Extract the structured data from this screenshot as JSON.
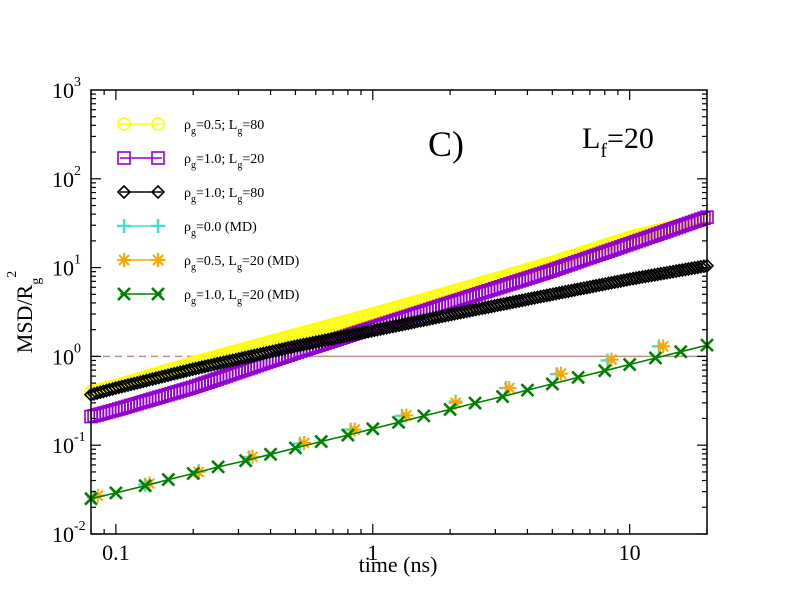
{
  "chart_data": {
    "type": "scatter",
    "title": "",
    "panel_label": "C)",
    "annotation": {
      "main": "L",
      "sub": "f",
      "rest": "=20"
    },
    "xlabel": "time (ns)",
    "ylabel": {
      "main": "MSD/R",
      "sub": "g",
      "sup": "2"
    },
    "x_scale": "log",
    "y_scale": "log",
    "xlim": [
      0.08,
      20
    ],
    "ylim": [
      0.01,
      1000
    ],
    "x_ticks": [
      {
        "value": 0.1,
        "label": "0.1"
      },
      {
        "value": 1,
        "label": "1"
      },
      {
        "value": 10,
        "label": "10"
      }
    ],
    "y_ticks": [
      {
        "value": 0.01,
        "base": "10",
        "exp": "-2"
      },
      {
        "value": 0.1,
        "base": "10",
        "exp": "-1"
      },
      {
        "value": 1,
        "base": "10",
        "exp": "0"
      },
      {
        "value": 10,
        "base": "10",
        "exp": "1"
      },
      {
        "value": 100,
        "base": "10",
        "exp": "2"
      },
      {
        "value": 1000,
        "base": "10",
        "exp": "3"
      }
    ],
    "grid": false,
    "legend_position": "top-left",
    "reference_line": {
      "y": 1.0,
      "color": "#bc8f8f",
      "style": "dashed-then-solid"
    },
    "series": [
      {
        "legend": {
          "pre": "ρ",
          "sub1": "g",
          "mid": "=0.5; L",
          "sub2": "g",
          "post": "=80"
        },
        "marker": "circle",
        "color": "#ffff00",
        "x": [
          0.08,
          0.1,
          0.2,
          0.5,
          1,
          2,
          5,
          10,
          20
        ],
        "y": [
          0.4,
          0.47,
          0.85,
          1.75,
          3.0,
          5.3,
          11.5,
          22,
          36
        ]
      },
      {
        "legend": {
          "pre": "ρ",
          "sub1": "g",
          "mid": "=1.0; L",
          "sub2": "g",
          "post": "=20"
        },
        "marker": "square",
        "color": "#9400d3",
        "x": [
          0.08,
          0.1,
          0.2,
          0.5,
          1,
          2,
          5,
          10,
          20
        ],
        "y": [
          0.21,
          0.25,
          0.45,
          1.1,
          2.1,
          4.0,
          9.3,
          18.5,
          37
        ]
      },
      {
        "legend": {
          "pre": "ρ",
          "sub1": "g",
          "mid": "=1.0; L",
          "sub2": "g",
          "post": "=80"
        },
        "marker": "diamond",
        "color": "#000000",
        "x": [
          0.08,
          0.1,
          0.2,
          0.5,
          1,
          2,
          5,
          10,
          20
        ],
        "y": [
          0.37,
          0.44,
          0.72,
          1.3,
          1.95,
          2.95,
          5.0,
          7.4,
          10.5
        ]
      },
      {
        "legend": {
          "pre": "ρ",
          "sub1": "g",
          "mid": "=0.0 (MD)",
          "sub2": "",
          "post": ""
        },
        "marker": "plus",
        "color": "#40e0d0",
        "x": [
          0.082,
          0.13,
          0.21,
          0.33,
          0.52,
          0.82,
          1.3,
          2.1,
          3.3,
          5.2,
          8.2,
          13
        ],
        "y": [
          0.026,
          0.036,
          0.051,
          0.073,
          0.104,
          0.15,
          0.214,
          0.31,
          0.44,
          0.63,
          0.9,
          1.3
        ]
      },
      {
        "legend": {
          "pre": "ρ",
          "sub1": "g",
          "mid": "=0.5, L",
          "sub2": "g",
          "post": "=20 (MD)"
        },
        "marker": "asterisk",
        "color": "#ffa500",
        "x": [
          0.085,
          0.135,
          0.21,
          0.34,
          0.54,
          0.85,
          1.35,
          2.1,
          3.4,
          5.4,
          8.5,
          13.5
        ],
        "y": [
          0.027,
          0.037,
          0.05,
          0.074,
          0.106,
          0.15,
          0.216,
          0.3,
          0.44,
          0.64,
          0.92,
          1.3
        ]
      },
      {
        "legend": {
          "pre": "ρ",
          "sub1": "g",
          "mid": "=1.0, L",
          "sub2": "g",
          "post": "=20 (MD)"
        },
        "marker": "x",
        "color": "#008000",
        "x": [
          0.08,
          0.1,
          0.13,
          0.16,
          0.2,
          0.25,
          0.32,
          0.4,
          0.5,
          0.63,
          0.8,
          1.0,
          1.26,
          1.58,
          2.0,
          2.5,
          3.2,
          4.0,
          5.0,
          6.3,
          8.0,
          10,
          12.6,
          15.8,
          20
        ],
        "y": [
          0.025,
          0.029,
          0.035,
          0.041,
          0.048,
          0.057,
          0.067,
          0.079,
          0.093,
          0.11,
          0.13,
          0.153,
          0.181,
          0.214,
          0.253,
          0.298,
          0.353,
          0.417,
          0.49,
          0.58,
          0.69,
          0.81,
          0.96,
          1.13,
          1.34
        ],
        "line": true
      }
    ]
  }
}
